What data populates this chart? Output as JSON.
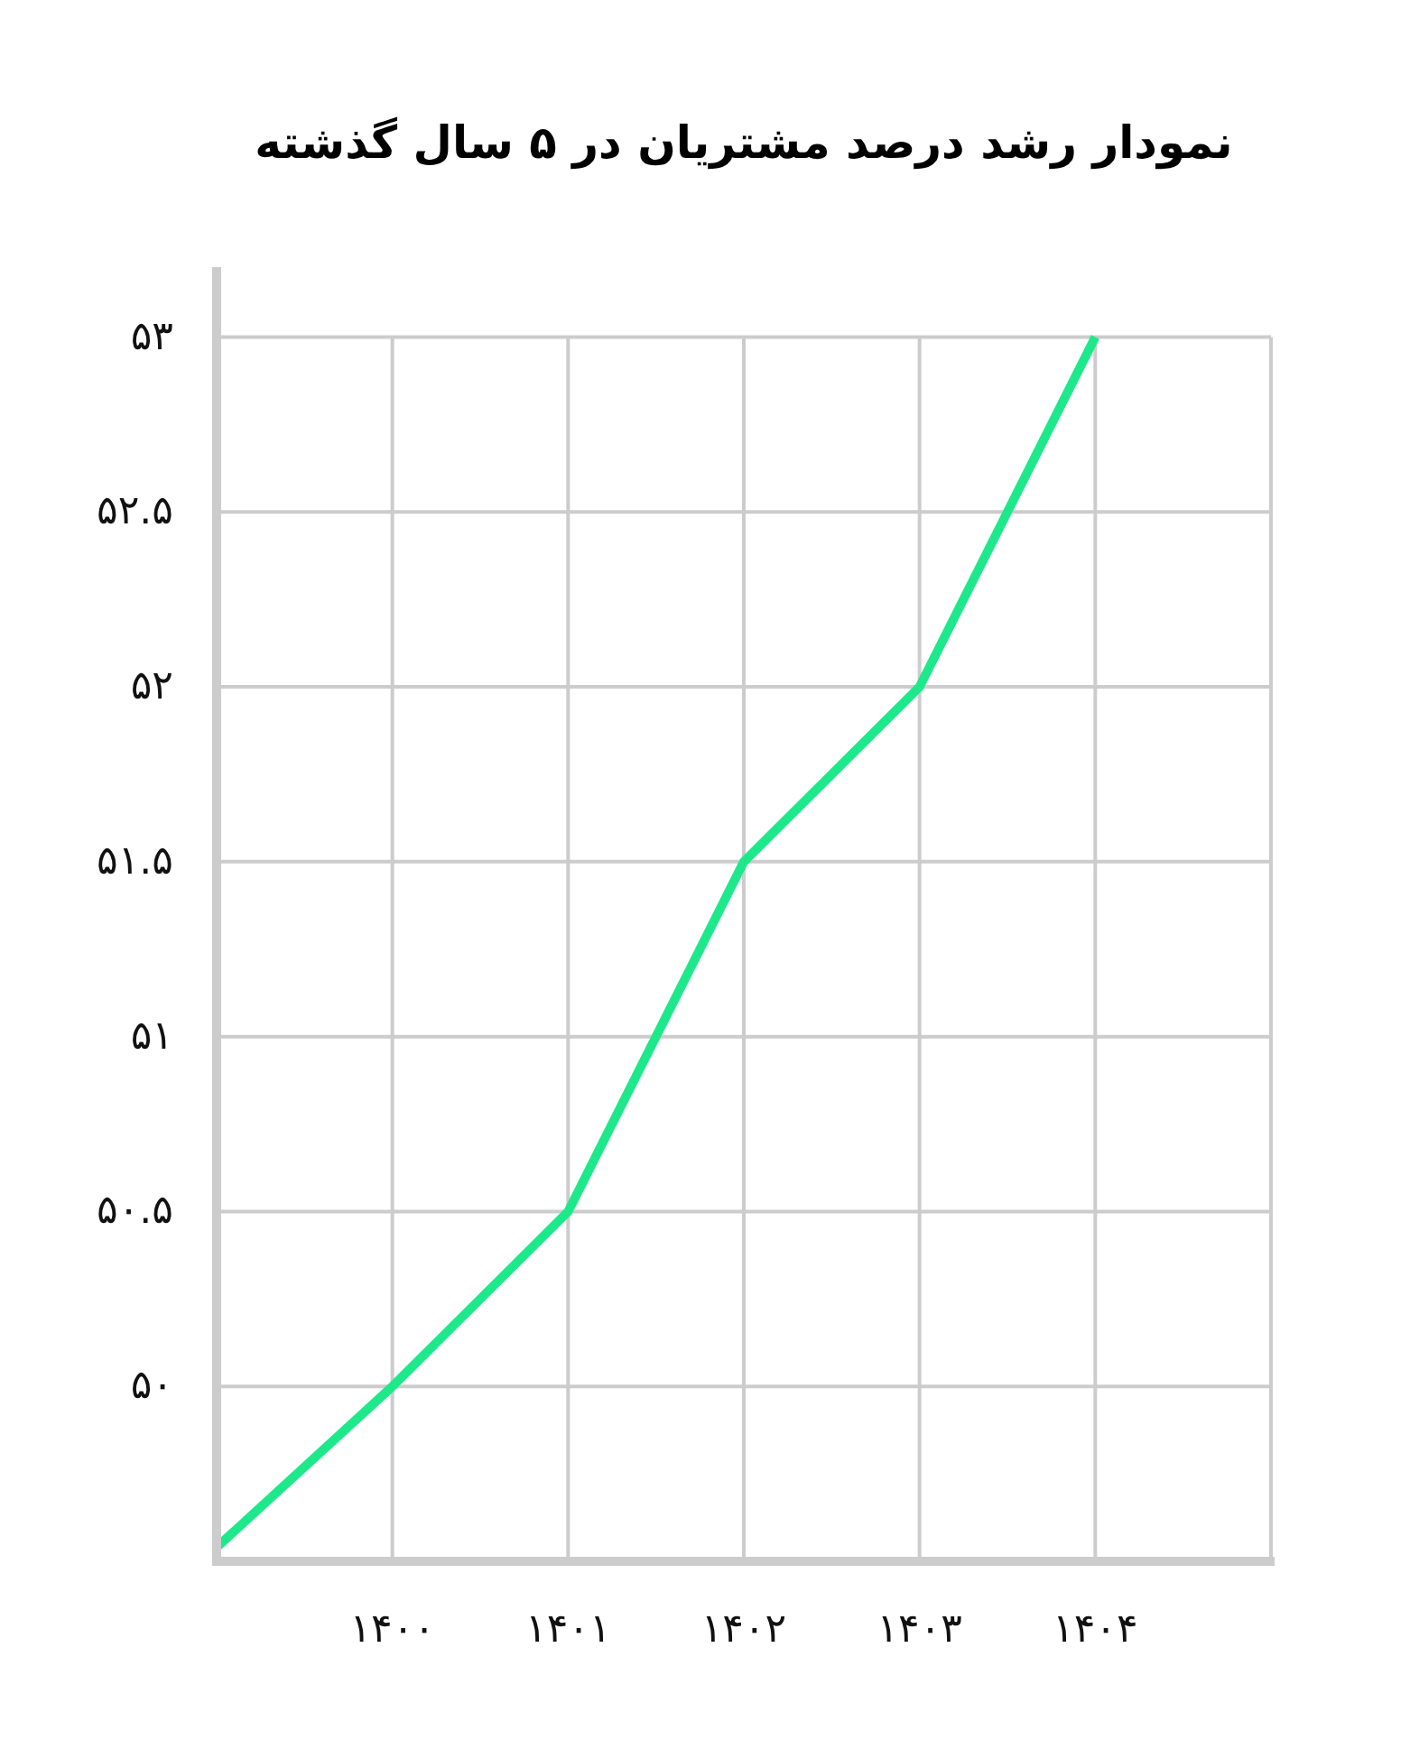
{
  "chart_data": {
    "type": "line",
    "title": "نمودار رشد درصد مشتریان در ۵ سال گذشته",
    "x": [
      1399,
      1400,
      1401,
      1402,
      1403,
      1404
    ],
    "values": [
      49.54,
      50,
      50.5,
      51.5,
      52,
      53
    ],
    "color": "#1de98b",
    "xlim": [
      1399,
      1405
    ],
    "ylim": [
      49.5,
      53.2
    ],
    "xticks": [
      {
        "value": 1400,
        "label": "۱۴۰۰"
      },
      {
        "value": 1401,
        "label": "۱۴۰۱"
      },
      {
        "value": 1402,
        "label": "۱۴۰۲"
      },
      {
        "value": 1403,
        "label": "۱۴۰۳"
      },
      {
        "value": 1404,
        "label": "۱۴۰۴"
      }
    ],
    "yticks": [
      {
        "value": 50,
        "label": "۵۰"
      },
      {
        "value": 50.5,
        "label": "۵۰.۵"
      },
      {
        "value": 51,
        "label": "۵۱"
      },
      {
        "value": 51.5,
        "label": "۵۱.۵"
      },
      {
        "value": 52,
        "label": "۵۲"
      },
      {
        "value": 52.5,
        "label": "۵۲.۵"
      },
      {
        "value": 53,
        "label": "۵۳"
      }
    ],
    "grid": true
  }
}
